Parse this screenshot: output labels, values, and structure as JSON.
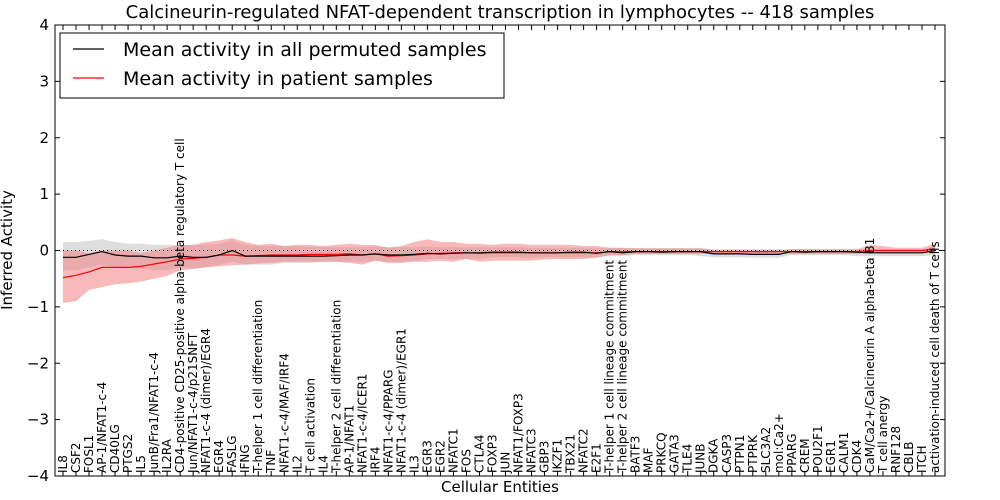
{
  "chart_data": {
    "type": "line",
    "title": "Calcineurin-regulated NFAT-dependent transcription in lymphocytes -- 418 samples",
    "xlabel": "Cellular Entities",
    "ylabel": "Inferred Activity",
    "ylim": [
      -4,
      4
    ],
    "yticks": [
      -4,
      -3,
      -2,
      -1,
      0,
      1,
      2,
      3,
      4
    ],
    "grid": false,
    "legend_position": "top-left",
    "categories": [
      "IL8",
      "CSF2",
      "FOSL1",
      "AP-1/NFAT1-c-4",
      "CD40LG",
      "PTGS2",
      "IL5",
      "JunB/Fra1/NFAT1-c-4",
      "IL2RA",
      "CD4-positive CD25-positive alpha-beta regulatory T cell",
      "Jun/NFAT1-c-4/p21SNFT",
      "NFAT1-c-4 (dimer)/EGR4",
      "EGR4",
      "FASLG",
      "IFNG",
      "T-helper 1 cell differentiation",
      "TNF",
      "NFAT1-c-4/MAF/IRF4",
      "IL2",
      "T cell activation",
      "IL4",
      "T-helper 2 cell differentiation",
      "AP-1/NFAT1",
      "NFAT1-c-4/ICER1",
      "IRF4",
      "NFAT1-c-4/PPARG",
      "NFAT1-c-4 (dimer)/EGR1",
      "IL3",
      "EGR3",
      "EGR2",
      "NFATC1",
      "FOS",
      "CTLA4",
      "FOXP3",
      "JUN",
      "NFAT1/FOXP3",
      "NFATC3",
      "GBP3",
      "IKZF1",
      "TBX21",
      "NFATC2",
      "E2F1",
      "T-helper 1 cell lineage commitment",
      "T-helper 2 cell lineage commitment",
      "BATF3",
      "MAF",
      "PRKCQ",
      "GATA3",
      "TLE4",
      "JUNB",
      "DGKA",
      "CASP3",
      "PTPN1",
      "PTPRK",
      "SLC3A2",
      "mol:Ca2+",
      "PPARG",
      "CREM",
      "POU2F1",
      "EGR1",
      "CALM1",
      "CDK4",
      "CaM/Ca2+/Calcineurin A alpha-beta B1",
      "T cell anergy",
      "RNF128",
      "CBLB",
      "ITCH",
      "activation-induced cell death of T cells"
    ],
    "series": [
      {
        "name": "Mean activity in all permuted samples",
        "color": "#000000",
        "values": [
          -0.12,
          -0.12,
          -0.07,
          -0.02,
          -0.08,
          -0.1,
          -0.1,
          -0.13,
          -0.13,
          -0.1,
          -0.12,
          -0.12,
          -0.08,
          0.0,
          -0.1,
          -0.1,
          -0.1,
          -0.1,
          -0.1,
          -0.1,
          -0.1,
          -0.09,
          -0.08,
          -0.08,
          -0.06,
          -0.08,
          -0.08,
          -0.07,
          -0.05,
          -0.06,
          -0.05,
          -0.04,
          -0.04,
          -0.03,
          -0.03,
          -0.03,
          -0.04,
          -0.04,
          -0.04,
          -0.03,
          -0.03,
          -0.05,
          -0.02,
          -0.04,
          -0.02,
          -0.02,
          -0.03,
          -0.02,
          -0.02,
          -0.02,
          -0.06,
          -0.06,
          -0.06,
          -0.07,
          -0.07,
          -0.07,
          -0.02,
          -0.03,
          -0.02,
          -0.02,
          -0.02,
          -0.03,
          -0.04,
          -0.04,
          -0.04,
          -0.04,
          -0.04,
          0.0
        ],
        "lower": [
          -0.35,
          -0.35,
          -0.3,
          -0.25,
          -0.3,
          -0.32,
          -0.32,
          -0.35,
          -0.35,
          -0.3,
          -0.32,
          -0.3,
          -0.25,
          -0.2,
          -0.25,
          -0.25,
          -0.25,
          -0.22,
          -0.22,
          -0.22,
          -0.2,
          -0.2,
          -0.2,
          -0.2,
          -0.18,
          -0.2,
          -0.2,
          -0.18,
          -0.15,
          -0.15,
          -0.15,
          -0.15,
          -0.15,
          -0.12,
          -0.12,
          -0.12,
          -0.13,
          -0.12,
          -0.12,
          -0.12,
          -0.12,
          -0.12,
          -0.1,
          -0.1,
          -0.08,
          -0.08,
          -0.08,
          -0.08,
          -0.08,
          -0.1,
          -0.12,
          -0.12,
          -0.12,
          -0.13,
          -0.13,
          -0.13,
          -0.08,
          -0.08,
          -0.08,
          -0.08,
          -0.08,
          -0.1,
          -0.1,
          -0.1,
          -0.1,
          -0.1,
          -0.1,
          -0.08
        ],
        "upper": [
          0.15,
          0.15,
          0.17,
          0.2,
          0.15,
          0.12,
          0.12,
          0.1,
          0.1,
          0.1,
          0.1,
          0.1,
          0.12,
          0.18,
          0.1,
          0.08,
          0.08,
          0.08,
          0.08,
          0.06,
          0.06,
          0.06,
          0.06,
          0.06,
          0.07,
          0.06,
          0.06,
          0.06,
          0.07,
          0.06,
          0.06,
          0.06,
          0.06,
          0.06,
          0.06,
          0.06,
          0.05,
          0.05,
          0.05,
          0.05,
          0.05,
          0.04,
          0.05,
          0.04,
          0.04,
          0.04,
          0.04,
          0.04,
          0.04,
          0.04,
          0.0,
          0.0,
          0.0,
          -0.01,
          -0.01,
          -0.01,
          0.03,
          0.03,
          0.03,
          0.03,
          0.03,
          0.03,
          0.02,
          0.02,
          0.02,
          0.02,
          0.02,
          0.08
        ]
      },
      {
        "name": "Mean activity in patient samples",
        "color": "#ff0000",
        "values": [
          -0.48,
          -0.44,
          -0.38,
          -0.3,
          -0.3,
          -0.3,
          -0.28,
          -0.24,
          -0.2,
          -0.15,
          -0.14,
          -0.12,
          -0.08,
          -0.08,
          -0.1,
          -0.09,
          -0.08,
          -0.08,
          -0.08,
          -0.07,
          -0.07,
          -0.07,
          -0.06,
          -0.08,
          -0.06,
          -0.1,
          -0.09,
          -0.08,
          -0.06,
          -0.05,
          -0.04,
          -0.04,
          -0.05,
          -0.04,
          -0.04,
          -0.04,
          -0.04,
          -0.04,
          -0.04,
          -0.04,
          -0.04,
          -0.04,
          -0.02,
          -0.02,
          -0.02,
          -0.02,
          -0.02,
          -0.02,
          -0.02,
          -0.02,
          -0.02,
          -0.02,
          -0.02,
          -0.02,
          -0.02,
          -0.02,
          -0.02,
          -0.02,
          -0.02,
          -0.02,
          -0.02,
          -0.02,
          0.0,
          0.0,
          0.0,
          0.0,
          0.0,
          0.03
        ],
        "lower": [
          -0.93,
          -0.9,
          -0.7,
          -0.65,
          -0.6,
          -0.58,
          -0.55,
          -0.5,
          -0.45,
          -0.35,
          -0.33,
          -0.3,
          -0.28,
          -0.26,
          -0.25,
          -0.23,
          -0.22,
          -0.2,
          -0.2,
          -0.2,
          -0.2,
          -0.2,
          -0.22,
          -0.25,
          -0.18,
          -0.22,
          -0.22,
          -0.2,
          -0.2,
          -0.18,
          -0.2,
          -0.15,
          -0.2,
          -0.18,
          -0.18,
          -0.18,
          -0.18,
          -0.16,
          -0.15,
          -0.15,
          -0.15,
          -0.13,
          -0.08,
          -0.08,
          -0.06,
          -0.06,
          -0.06,
          -0.06,
          -0.06,
          -0.06,
          -0.06,
          -0.06,
          -0.06,
          -0.06,
          -0.06,
          -0.06,
          -0.06,
          -0.06,
          -0.06,
          -0.06,
          -0.06,
          -0.06,
          -0.05,
          -0.05,
          -0.05,
          -0.05,
          -0.05,
          -0.05
        ],
        "upper": [
          0.0,
          0.0,
          -0.05,
          0.0,
          0.0,
          0.0,
          -0.05,
          0.0,
          0.05,
          0.1,
          0.1,
          0.15,
          0.18,
          0.22,
          0.15,
          0.1,
          0.12,
          0.08,
          0.1,
          0.1,
          0.08,
          0.1,
          0.12,
          0.1,
          0.1,
          0.05,
          0.08,
          0.15,
          0.2,
          0.15,
          0.15,
          0.12,
          0.12,
          0.1,
          0.12,
          0.12,
          0.1,
          0.1,
          0.1,
          0.1,
          0.08,
          0.08,
          0.05,
          0.05,
          0.04,
          0.04,
          0.04,
          0.04,
          0.04,
          0.04,
          0.02,
          0.02,
          0.02,
          0.02,
          0.02,
          0.02,
          0.02,
          0.02,
          0.02,
          0.02,
          0.02,
          0.02,
          0.1,
          0.08,
          0.05,
          0.05,
          0.05,
          0.12
        ]
      }
    ],
    "reference_line": {
      "y": 0,
      "style": "dotted"
    }
  },
  "legend": {
    "entries": [
      "Mean activity in all permuted samples",
      "Mean activity in patient samples"
    ]
  },
  "colors": {
    "permuted_band": "#c8c8c8",
    "patient_band": "#f08080"
  }
}
